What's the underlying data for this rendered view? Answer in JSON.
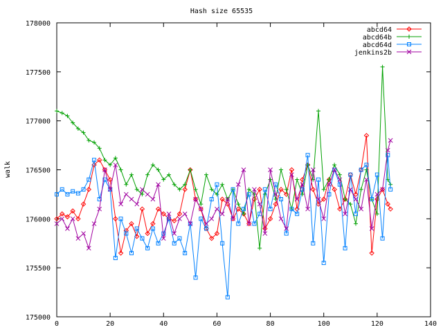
{
  "chart_data": {
    "type": "line",
    "title": "Hash size 65535",
    "xlabel": "",
    "ylabel": "walk",
    "xlim": [
      0,
      140
    ],
    "ylim": [
      175000,
      178000
    ],
    "xticks": [
      0,
      20,
      40,
      60,
      80,
      100,
      120,
      140
    ],
    "yticks": [
      175000,
      175500,
      176000,
      176500,
      177000,
      177500,
      178000
    ],
    "grid": false,
    "legend_position": "top-right",
    "series": [
      {
        "name": "abcd64",
        "color": "#ff0000",
        "marker": "diamond",
        "x": [
          0,
          2,
          4,
          6,
          8,
          10,
          12,
          14,
          16,
          18,
          20,
          22,
          24,
          26,
          28,
          30,
          32,
          34,
          36,
          38,
          40,
          42,
          44,
          46,
          48,
          50,
          52,
          54,
          56,
          58,
          60,
          62,
          64,
          66,
          68,
          70,
          72,
          74,
          76,
          78,
          80,
          82,
          84,
          86,
          88,
          90,
          92,
          94,
          96,
          98,
          100,
          102,
          104,
          106,
          108,
          110,
          112,
          114,
          116,
          118,
          120,
          122,
          124,
          125
        ],
        "y": [
          176000,
          176050,
          176020,
          176080,
          176000,
          176150,
          176300,
          176550,
          176600,
          176500,
          176400,
          176000,
          175650,
          175880,
          175950,
          175820,
          176100,
          175850,
          175950,
          176100,
          176050,
          176000,
          175980,
          176050,
          176300,
          176500,
          176200,
          176100,
          175900,
          175800,
          175850,
          176200,
          176150,
          176000,
          176100,
          176050,
          175950,
          176200,
          176300,
          175900,
          176000,
          176150,
          176300,
          176250,
          176500,
          176100,
          176400,
          176550,
          176300,
          176150,
          176200,
          176400,
          176300,
          176100,
          176200,
          176450,
          176250,
          176500,
          176850,
          175650,
          176200,
          176300,
          176150,
          176100
        ]
      },
      {
        "name": "abcd64b",
        "color": "#00a000",
        "marker": "plus",
        "x": [
          0,
          2,
          4,
          6,
          8,
          10,
          12,
          14,
          16,
          18,
          20,
          22,
          24,
          26,
          28,
          30,
          32,
          34,
          36,
          38,
          40,
          42,
          44,
          46,
          48,
          50,
          52,
          54,
          56,
          58,
          60,
          62,
          64,
          66,
          68,
          70,
          72,
          74,
          76,
          78,
          80,
          82,
          84,
          86,
          88,
          90,
          92,
          94,
          96,
          98,
          100,
          102,
          104,
          106,
          108,
          110,
          112,
          114,
          116,
          118,
          120,
          122,
          124,
          125
        ],
        "y": [
          177100,
          177080,
          177050,
          176980,
          176920,
          176880,
          176800,
          176780,
          176720,
          176600,
          176550,
          176620,
          176500,
          176350,
          176450,
          176300,
          176250,
          176450,
          176550,
          176500,
          176400,
          176450,
          176350,
          176300,
          176350,
          176500,
          176300,
          176150,
          176450,
          176300,
          176250,
          176350,
          176200,
          176300,
          176150,
          176050,
          176300,
          176250,
          175700,
          176250,
          176400,
          176200,
          176500,
          176300,
          176100,
          176400,
          176250,
          176550,
          176400,
          177100,
          176300,
          176400,
          176550,
          176450,
          176200,
          176150,
          175950,
          176300,
          176500,
          176200,
          176050,
          177550,
          176400,
          176350
        ]
      },
      {
        "name": "abcd64d",
        "color": "#0080ff",
        "marker": "square",
        "x": [
          0,
          2,
          4,
          6,
          8,
          10,
          12,
          14,
          16,
          18,
          20,
          22,
          24,
          26,
          28,
          30,
          32,
          34,
          36,
          38,
          40,
          42,
          44,
          46,
          48,
          50,
          52,
          54,
          56,
          58,
          60,
          62,
          64,
          66,
          68,
          70,
          72,
          74,
          76,
          78,
          80,
          82,
          84,
          86,
          88,
          90,
          92,
          94,
          96,
          98,
          100,
          102,
          104,
          106,
          108,
          110,
          112,
          114,
          116,
          118,
          120,
          122,
          124,
          125
        ],
        "y": [
          176250,
          176300,
          176250,
          176280,
          176260,
          176300,
          176400,
          176600,
          176200,
          176400,
          176300,
          175600,
          176000,
          175850,
          175650,
          175900,
          175800,
          175700,
          175900,
          175750,
          175850,
          176000,
          175750,
          175800,
          175650,
          175950,
          175400,
          176000,
          175900,
          176200,
          176350,
          175750,
          175200,
          176300,
          175950,
          176100,
          176250,
          175950,
          176050,
          176300,
          176100,
          176350,
          176200,
          175850,
          176100,
          176050,
          176300,
          176650,
          175750,
          176400,
          175550,
          176250,
          176500,
          176350,
          175700,
          176450,
          176050,
          176500,
          176550,
          176200,
          176450,
          175800,
          176650,
          176300
        ]
      },
      {
        "name": "jenkins2b",
        "color": "#a000a0",
        "marker": "x",
        "x": [
          0,
          2,
          4,
          6,
          8,
          10,
          12,
          14,
          16,
          18,
          20,
          22,
          24,
          26,
          28,
          30,
          32,
          34,
          36,
          38,
          40,
          42,
          44,
          46,
          48,
          50,
          52,
          54,
          56,
          58,
          60,
          62,
          64,
          66,
          68,
          70,
          72,
          74,
          76,
          78,
          80,
          82,
          84,
          86,
          88,
          90,
          92,
          94,
          96,
          98,
          100,
          102,
          104,
          106,
          108,
          110,
          112,
          114,
          116,
          118,
          120,
          122,
          124,
          125
        ],
        "y": [
          175950,
          176000,
          175900,
          176000,
          175800,
          175850,
          175700,
          175950,
          176100,
          176500,
          176300,
          176550,
          176150,
          176250,
          176200,
          176150,
          176300,
          176250,
          176200,
          176350,
          175800,
          176050,
          175850,
          176000,
          176050,
          175950,
          176200,
          176100,
          175950,
          176000,
          176100,
          176050,
          176200,
          176000,
          176350,
          176500,
          175950,
          176300,
          176150,
          175850,
          176500,
          176250,
          176000,
          175900,
          176450,
          176200,
          176350,
          176100,
          176500,
          176200,
          176000,
          176350,
          176500,
          176400,
          176050,
          176300,
          176200,
          176100,
          176400,
          175900,
          176250,
          176300,
          176700,
          176800
        ]
      }
    ]
  }
}
